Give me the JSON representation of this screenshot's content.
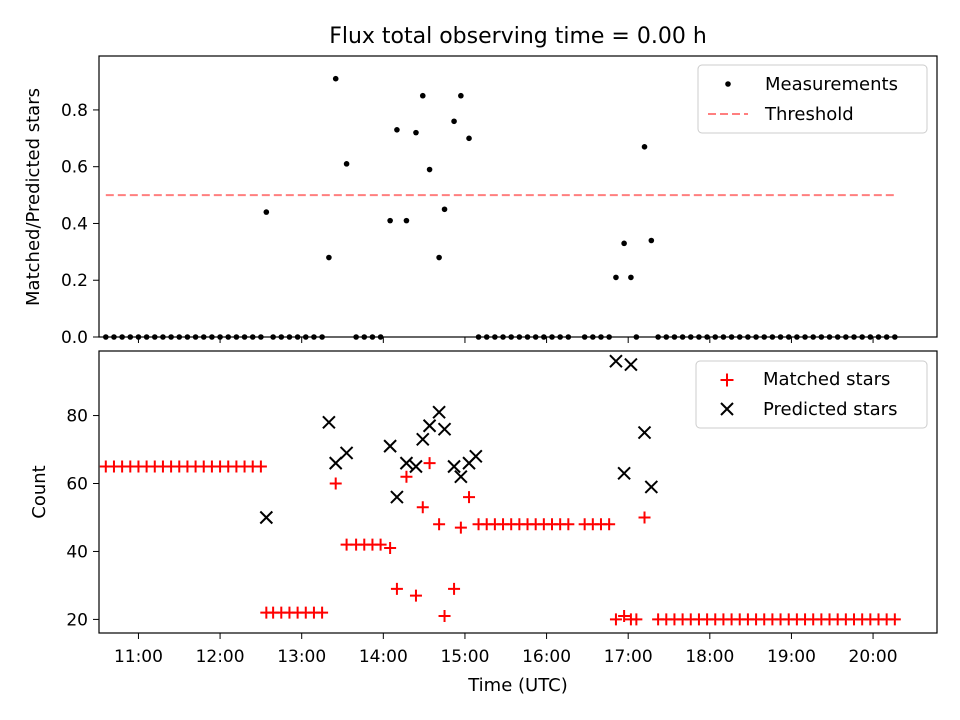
{
  "figure": {
    "title": "Flux total observing time = 0.00 h"
  },
  "chart_data": [
    {
      "type": "scatter",
      "panel": "top",
      "title": "Flux total observing time = 0.00 h",
      "xlabel": "",
      "ylabel": "Matched/Predicted stars",
      "xlim": [
        "10:31",
        "20:47"
      ],
      "ylim": [
        0,
        0.99
      ],
      "yticks": [
        0.0,
        0.2,
        0.4,
        0.6,
        0.8
      ],
      "yticklabels": [
        "0.0",
        "0.2",
        "0.4",
        "0.6",
        "0.8"
      ],
      "legend": {
        "position": "top-right",
        "entries": [
          "Measurements",
          "Threshold"
        ]
      },
      "grid": false,
      "series": [
        {
          "name": "Measurements",
          "kind": "scatter",
          "marker": "dot",
          "color": "#000000",
          "points": [
            [
              "10:36",
              0
            ],
            [
              "10:42",
              0
            ],
            [
              "10:48",
              0
            ],
            [
              "10:54",
              0
            ],
            [
              "11:00",
              0
            ],
            [
              "11:06",
              0
            ],
            [
              "11:12",
              0
            ],
            [
              "11:18",
              0
            ],
            [
              "11:24",
              0
            ],
            [
              "11:30",
              0
            ],
            [
              "11:36",
              0
            ],
            [
              "11:42",
              0
            ],
            [
              "11:48",
              0
            ],
            [
              "11:54",
              0
            ],
            [
              "12:00",
              0
            ],
            [
              "12:06",
              0
            ],
            [
              "12:12",
              0
            ],
            [
              "12:18",
              0
            ],
            [
              "12:24",
              0
            ],
            [
              "12:30",
              0
            ],
            [
              "12:34",
              0.44
            ],
            [
              "12:39",
              0
            ],
            [
              "12:45",
              0
            ],
            [
              "12:51",
              0
            ],
            [
              "12:57",
              0
            ],
            [
              "13:03",
              0
            ],
            [
              "13:09",
              0
            ],
            [
              "13:15",
              0
            ],
            [
              "13:20",
              0.28
            ],
            [
              "13:25",
              0.91
            ],
            [
              "13:33",
              0.61
            ],
            [
              "13:40",
              0
            ],
            [
              "13:46",
              0
            ],
            [
              "13:52",
              0
            ],
            [
              "13:58",
              0
            ],
            [
              "14:05",
              0.41
            ],
            [
              "14:10",
              0.73
            ],
            [
              "14:17",
              0.41
            ],
            [
              "14:24",
              0.72
            ],
            [
              "14:29",
              0.85
            ],
            [
              "14:34",
              0.59
            ],
            [
              "14:41",
              0.28
            ],
            [
              "14:45",
              0.45
            ],
            [
              "14:52",
              0.76
            ],
            [
              "14:57",
              0.85
            ],
            [
              "15:03",
              0.7
            ],
            [
              "15:10",
              0
            ],
            [
              "15:16",
              0
            ],
            [
              "15:22",
              0
            ],
            [
              "15:28",
              0
            ],
            [
              "15:34",
              0
            ],
            [
              "15:40",
              0
            ],
            [
              "15:46",
              0
            ],
            [
              "15:52",
              0
            ],
            [
              "15:58",
              0
            ],
            [
              "16:04",
              0
            ],
            [
              "16:10",
              0
            ],
            [
              "16:16",
              0
            ],
            [
              "16:28",
              0
            ],
            [
              "16:34",
              0
            ],
            [
              "16:40",
              0
            ],
            [
              "16:46",
              0
            ],
            [
              "16:51",
              0.21
            ],
            [
              "16:57",
              0.33
            ],
            [
              "17:02",
              0.21
            ],
            [
              "17:06",
              0
            ],
            [
              "17:12",
              0.67
            ],
            [
              "17:17",
              0.34
            ],
            [
              "17:22",
              0
            ],
            [
              "17:28",
              0
            ],
            [
              "17:34",
              0
            ],
            [
              "17:40",
              0
            ],
            [
              "17:46",
              0
            ],
            [
              "17:52",
              0
            ],
            [
              "17:58",
              0
            ],
            [
              "18:04",
              0
            ],
            [
              "18:10",
              0
            ],
            [
              "18:16",
              0
            ],
            [
              "18:22",
              0
            ],
            [
              "18:28",
              0
            ],
            [
              "18:34",
              0
            ],
            [
              "18:40",
              0
            ],
            [
              "18:46",
              0
            ],
            [
              "18:52",
              0
            ],
            [
              "18:58",
              0
            ],
            [
              "19:04",
              0
            ],
            [
              "19:10",
              0
            ],
            [
              "19:16",
              0
            ],
            [
              "19:22",
              0
            ],
            [
              "19:28",
              0
            ],
            [
              "19:34",
              0
            ],
            [
              "19:40",
              0
            ],
            [
              "19:46",
              0
            ],
            [
              "19:52",
              0
            ],
            [
              "19:58",
              0
            ],
            [
              "20:04",
              0
            ],
            [
              "20:10",
              0
            ],
            [
              "20:16",
              0
            ]
          ]
        },
        {
          "name": "Threshold",
          "kind": "line",
          "style": "dashed",
          "color": "#ff7f7f",
          "points": [
            [
              "10:36",
              0.5
            ],
            [
              "20:16",
              0.5
            ]
          ]
        }
      ]
    },
    {
      "type": "scatter",
      "panel": "bottom",
      "title": "",
      "xlabel": "Time (UTC)",
      "ylabel": "Count",
      "xlim": [
        "10:31",
        "20:47"
      ],
      "ylim": [
        16,
        99
      ],
      "xticks": [
        "11:00",
        "12:00",
        "13:00",
        "14:00",
        "15:00",
        "16:00",
        "17:00",
        "18:00",
        "19:00",
        "20:00"
      ],
      "yticks": [
        20,
        40,
        60,
        80
      ],
      "yticklabels": [
        "20",
        "40",
        "60",
        "80"
      ],
      "legend": {
        "position": "top-right",
        "entries": [
          "Matched stars",
          "Predicted stars"
        ]
      },
      "grid": false,
      "series": [
        {
          "name": "Matched stars",
          "marker": "plus",
          "color": "#ff0000",
          "points": [
            [
              "10:36",
              65
            ],
            [
              "10:42",
              65
            ],
            [
              "10:48",
              65
            ],
            [
              "10:54",
              65
            ],
            [
              "11:00",
              65
            ],
            [
              "11:06",
              65
            ],
            [
              "11:12",
              65
            ],
            [
              "11:18",
              65
            ],
            [
              "11:24",
              65
            ],
            [
              "11:30",
              65
            ],
            [
              "11:36",
              65
            ],
            [
              "11:42",
              65
            ],
            [
              "11:48",
              65
            ],
            [
              "11:54",
              65
            ],
            [
              "12:00",
              65
            ],
            [
              "12:06",
              65
            ],
            [
              "12:12",
              65
            ],
            [
              "12:18",
              65
            ],
            [
              "12:24",
              65
            ],
            [
              "12:30",
              65
            ],
            [
              "12:34",
              22
            ],
            [
              "12:39",
              22
            ],
            [
              "12:45",
              22
            ],
            [
              "12:51",
              22
            ],
            [
              "12:57",
              22
            ],
            [
              "13:03",
              22
            ],
            [
              "13:09",
              22
            ],
            [
              "13:15",
              22
            ],
            [
              "13:25",
              60
            ],
            [
              "13:33",
              42
            ],
            [
              "13:40",
              42
            ],
            [
              "13:46",
              42
            ],
            [
              "13:52",
              42
            ],
            [
              "13:58",
              42
            ],
            [
              "14:05",
              41
            ],
            [
              "14:10",
              29
            ],
            [
              "14:17",
              62
            ],
            [
              "14:24",
              27
            ],
            [
              "14:29",
              53
            ],
            [
              "14:34",
              66
            ],
            [
              "14:41",
              48
            ],
            [
              "14:45",
              21
            ],
            [
              "14:52",
              29
            ],
            [
              "14:57",
              47
            ],
            [
              "15:03",
              56
            ],
            [
              "15:10",
              48
            ],
            [
              "15:16",
              48
            ],
            [
              "15:22",
              48
            ],
            [
              "15:28",
              48
            ],
            [
              "15:34",
              48
            ],
            [
              "15:40",
              48
            ],
            [
              "15:46",
              48
            ],
            [
              "15:52",
              48
            ],
            [
              "15:58",
              48
            ],
            [
              "16:04",
              48
            ],
            [
              "16:10",
              48
            ],
            [
              "16:16",
              48
            ],
            [
              "16:28",
              48
            ],
            [
              "16:34",
              48
            ],
            [
              "16:40",
              48
            ],
            [
              "16:46",
              48
            ],
            [
              "16:51",
              20
            ],
            [
              "16:57",
              21
            ],
            [
              "17:02",
              20
            ],
            [
              "17:06",
              20
            ],
            [
              "17:12",
              50
            ],
            [
              "17:22",
              20
            ],
            [
              "17:28",
              20
            ],
            [
              "17:34",
              20
            ],
            [
              "17:40",
              20
            ],
            [
              "17:46",
              20
            ],
            [
              "17:52",
              20
            ],
            [
              "17:58",
              20
            ],
            [
              "18:04",
              20
            ],
            [
              "18:10",
              20
            ],
            [
              "18:16",
              20
            ],
            [
              "18:22",
              20
            ],
            [
              "18:28",
              20
            ],
            [
              "18:34",
              20
            ],
            [
              "18:40",
              20
            ],
            [
              "18:46",
              20
            ],
            [
              "18:52",
              20
            ],
            [
              "18:58",
              20
            ],
            [
              "19:04",
              20
            ],
            [
              "19:10",
              20
            ],
            [
              "19:16",
              20
            ],
            [
              "19:22",
              20
            ],
            [
              "19:28",
              20
            ],
            [
              "19:34",
              20
            ],
            [
              "19:40",
              20
            ],
            [
              "19:46",
              20
            ],
            [
              "19:52",
              20
            ],
            [
              "19:58",
              20
            ],
            [
              "20:04",
              20
            ],
            [
              "20:10",
              20
            ],
            [
              "20:16",
              20
            ]
          ]
        },
        {
          "name": "Predicted stars",
          "marker": "x",
          "color": "#000000",
          "points": [
            [
              "12:34",
              50
            ],
            [
              "13:20",
              78
            ],
            [
              "13:25",
              66
            ],
            [
              "13:33",
              69
            ],
            [
              "14:05",
              71
            ],
            [
              "14:10",
              56
            ],
            [
              "14:17",
              66
            ],
            [
              "14:24",
              65
            ],
            [
              "14:29",
              73
            ],
            [
              "14:34",
              77
            ],
            [
              "14:41",
              81
            ],
            [
              "14:45",
              76
            ],
            [
              "14:52",
              65
            ],
            [
              "14:57",
              62
            ],
            [
              "15:03",
              66
            ],
            [
              "15:08",
              68
            ],
            [
              "16:51",
              96
            ],
            [
              "16:57",
              63
            ],
            [
              "17:02",
              95
            ],
            [
              "17:12",
              75
            ],
            [
              "17:17",
              59
            ]
          ]
        }
      ]
    }
  ]
}
